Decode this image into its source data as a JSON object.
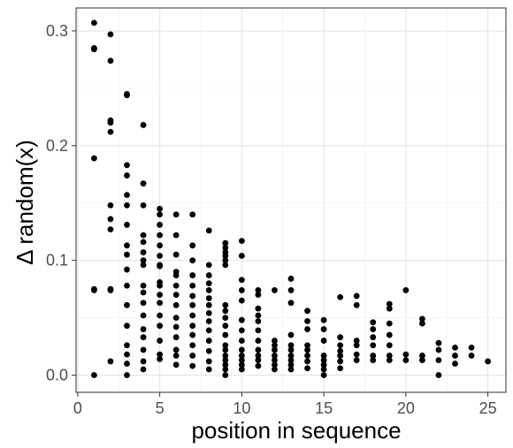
{
  "chart_data": {
    "type": "scatter",
    "title": "",
    "xlabel": "position in sequence",
    "ylabel": "Δ random(x)",
    "xlim": [
      -0.1,
      26.1
    ],
    "ylim": [
      -0.015,
      0.32
    ],
    "x_ticks": [
      0,
      5,
      10,
      15,
      20,
      25
    ],
    "y_ticks": [
      0.0,
      0.1,
      0.2,
      0.3
    ],
    "x_tick_labels": [
      "0",
      "5",
      "10",
      "15",
      "20",
      "25"
    ],
    "y_tick_labels": [
      "0.0",
      "0.1",
      "0.2",
      "0.3"
    ],
    "grid": true,
    "legend": "none",
    "point_color": "#000000",
    "series": [
      {
        "points": [
          [
            1,
            0.307
          ],
          [
            1,
            0.285
          ],
          [
            1,
            0.284
          ],
          [
            1,
            0.189
          ],
          [
            1,
            0.075
          ],
          [
            1,
            0.074
          ],
          [
            1,
            0.0
          ],
          [
            2,
            0.297
          ],
          [
            2,
            0.274
          ],
          [
            2,
            0.222
          ],
          [
            2,
            0.22
          ],
          [
            2,
            0.212
          ],
          [
            2,
            0.148
          ],
          [
            2,
            0.136
          ],
          [
            2,
            0.127
          ],
          [
            2,
            0.075
          ],
          [
            2,
            0.074
          ],
          [
            2,
            0.012
          ],
          [
            3,
            0.245
          ],
          [
            3,
            0.244
          ],
          [
            3,
            0.183
          ],
          [
            3,
            0.174
          ],
          [
            3,
            0.157
          ],
          [
            3,
            0.148
          ],
          [
            3,
            0.131
          ],
          [
            3,
            0.113
          ],
          [
            3,
            0.105
          ],
          [
            3,
            0.092
          ],
          [
            3,
            0.078
          ],
          [
            3,
            0.061
          ],
          [
            3,
            0.043
          ],
          [
            3,
            0.026
          ],
          [
            3,
            0.018
          ],
          [
            3,
            0.01
          ],
          [
            3,
            0.0
          ],
          [
            4,
            0.218
          ],
          [
            4,
            0.167
          ],
          [
            4,
            0.148
          ],
          [
            4,
            0.122
          ],
          [
            4,
            0.116
          ],
          [
            4,
            0.107
          ],
          [
            4,
            0.1
          ],
          [
            4,
            0.096
          ],
          [
            4,
            0.078
          ],
          [
            4,
            0.072
          ],
          [
            4,
            0.063
          ],
          [
            4,
            0.052
          ],
          [
            4,
            0.04
          ],
          [
            4,
            0.033
          ],
          [
            4,
            0.022
          ],
          [
            4,
            0.012
          ],
          [
            4,
            0.005
          ],
          [
            5,
            0.145
          ],
          [
            5,
            0.14
          ],
          [
            5,
            0.131
          ],
          [
            5,
            0.122
          ],
          [
            5,
            0.113
          ],
          [
            5,
            0.104
          ],
          [
            5,
            0.096
          ],
          [
            5,
            0.095
          ],
          [
            5,
            0.081
          ],
          [
            5,
            0.078
          ],
          [
            5,
            0.07
          ],
          [
            5,
            0.063
          ],
          [
            5,
            0.052
          ],
          [
            5,
            0.043
          ],
          [
            5,
            0.03
          ],
          [
            5,
            0.018
          ],
          [
            5,
            0.014
          ],
          [
            6,
            0.14
          ],
          [
            6,
            0.122
          ],
          [
            6,
            0.105
          ],
          [
            6,
            0.09
          ],
          [
            6,
            0.087
          ],
          [
            6,
            0.078
          ],
          [
            6,
            0.07
          ],
          [
            6,
            0.061
          ],
          [
            6,
            0.05
          ],
          [
            6,
            0.042
          ],
          [
            6,
            0.033
          ],
          [
            6,
            0.022
          ],
          [
            6,
            0.017
          ],
          [
            6,
            0.009
          ],
          [
            7,
            0.14
          ],
          [
            7,
            0.113
          ],
          [
            7,
            0.1
          ],
          [
            7,
            0.087
          ],
          [
            7,
            0.078
          ],
          [
            7,
            0.069
          ],
          [
            7,
            0.061
          ],
          [
            7,
            0.052
          ],
          [
            7,
            0.043
          ],
          [
            7,
            0.035
          ],
          [
            7,
            0.026
          ],
          [
            7,
            0.017
          ],
          [
            7,
            0.008
          ],
          [
            8,
            0.126
          ],
          [
            8,
            0.096
          ],
          [
            8,
            0.087
          ],
          [
            8,
            0.08
          ],
          [
            8,
            0.074
          ],
          [
            8,
            0.067
          ],
          [
            8,
            0.061
          ],
          [
            8,
            0.054
          ],
          [
            8,
            0.047
          ],
          [
            8,
            0.039
          ],
          [
            8,
            0.03
          ],
          [
            8,
            0.021
          ],
          [
            8,
            0.012
          ],
          [
            8,
            0.005
          ],
          [
            9,
            0.115
          ],
          [
            9,
            0.111
          ],
          [
            9,
            0.107
          ],
          [
            9,
            0.104
          ],
          [
            9,
            0.1
          ],
          [
            9,
            0.096
          ],
          [
            9,
            0.061
          ],
          [
            9,
            0.056
          ],
          [
            9,
            0.05
          ],
          [
            9,
            0.043
          ],
          [
            9,
            0.035
          ],
          [
            9,
            0.026
          ],
          [
            9,
            0.022
          ],
          [
            9,
            0.017
          ],
          [
            9,
            0.013
          ],
          [
            9,
            0.009
          ],
          [
            9,
            0.005
          ],
          [
            9,
            0.0
          ],
          [
            10,
            0.117
          ],
          [
            10,
            0.104
          ],
          [
            10,
            0.083
          ],
          [
            10,
            0.074
          ],
          [
            10,
            0.065
          ],
          [
            10,
            0.048
          ],
          [
            10,
            0.039
          ],
          [
            10,
            0.03
          ],
          [
            10,
            0.022
          ],
          [
            10,
            0.017
          ],
          [
            10,
            0.013
          ],
          [
            10,
            0.009
          ],
          [
            10,
            0.005
          ],
          [
            11,
            0.074
          ],
          [
            11,
            0.07
          ],
          [
            11,
            0.058
          ],
          [
            11,
            0.052
          ],
          [
            11,
            0.047
          ],
          [
            11,
            0.039
          ],
          [
            11,
            0.03
          ],
          [
            11,
            0.022
          ],
          [
            11,
            0.017
          ],
          [
            11,
            0.013
          ],
          [
            11,
            0.008
          ],
          [
            12,
            0.074
          ],
          [
            12,
            0.03
          ],
          [
            12,
            0.026
          ],
          [
            12,
            0.022
          ],
          [
            12,
            0.017
          ],
          [
            12,
            0.013
          ],
          [
            12,
            0.009
          ],
          [
            12,
            0.005
          ],
          [
            13,
            0.084
          ],
          [
            13,
            0.074
          ],
          [
            13,
            0.063
          ],
          [
            13,
            0.035
          ],
          [
            13,
            0.026
          ],
          [
            13,
            0.022
          ],
          [
            13,
            0.017
          ],
          [
            13,
            0.013
          ],
          [
            13,
            0.009
          ],
          [
            13,
            0.005
          ],
          [
            14,
            0.056
          ],
          [
            14,
            0.047
          ],
          [
            14,
            0.04
          ],
          [
            14,
            0.026
          ],
          [
            14,
            0.022
          ],
          [
            14,
            0.017
          ],
          [
            14,
            0.012
          ],
          [
            14,
            0.006
          ],
          [
            15,
            0.048
          ],
          [
            15,
            0.04
          ],
          [
            15,
            0.03
          ],
          [
            15,
            0.017
          ],
          [
            15,
            0.013
          ],
          [
            15,
            0.009
          ],
          [
            15,
            0.005
          ],
          [
            15,
            0.0
          ],
          [
            16,
            0.068
          ],
          [
            16,
            0.033
          ],
          [
            16,
            0.026
          ],
          [
            16,
            0.021
          ],
          [
            16,
            0.017
          ],
          [
            16,
            0.012
          ],
          [
            16,
            0.006
          ],
          [
            17,
            0.069
          ],
          [
            17,
            0.061
          ],
          [
            17,
            0.03
          ],
          [
            17,
            0.026
          ],
          [
            17,
            0.018
          ],
          [
            17,
            0.013
          ],
          [
            18,
            0.046
          ],
          [
            18,
            0.04
          ],
          [
            18,
            0.033
          ],
          [
            18,
            0.026
          ],
          [
            18,
            0.017
          ],
          [
            18,
            0.013
          ],
          [
            19,
            0.062
          ],
          [
            19,
            0.058
          ],
          [
            19,
            0.045
          ],
          [
            19,
            0.035
          ],
          [
            19,
            0.026
          ],
          [
            19,
            0.017
          ],
          [
            19,
            0.013
          ],
          [
            20,
            0.074
          ],
          [
            20,
            0.018
          ],
          [
            20,
            0.013
          ],
          [
            21,
            0.049
          ],
          [
            21,
            0.045
          ],
          [
            21,
            0.017
          ],
          [
            21,
            0.013
          ],
          [
            22,
            0.028
          ],
          [
            22,
            0.022
          ],
          [
            22,
            0.013
          ],
          [
            22,
            0.0
          ],
          [
            23,
            0.024
          ],
          [
            23,
            0.017
          ],
          [
            23,
            0.01
          ],
          [
            24,
            0.024
          ],
          [
            24,
            0.017
          ],
          [
            25,
            0.012
          ]
        ]
      }
    ]
  }
}
